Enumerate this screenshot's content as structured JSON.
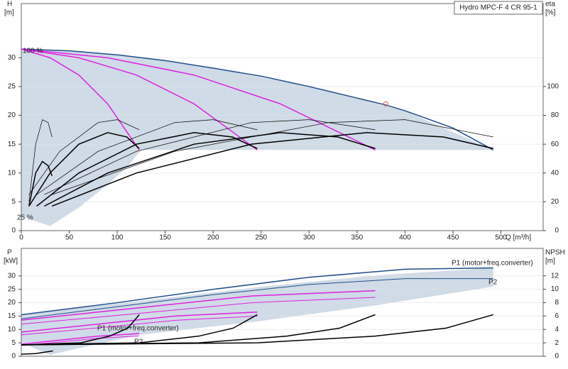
{
  "chart_data": [
    {
      "type": "line",
      "title": "Hydro MPC-F 4 CR 95-1",
      "xlabel": "Q [m³/h]",
      "ylabel": "H",
      "yunit": "[m]",
      "y2label": "eta",
      "y2unit": "[%]",
      "xlim": [
        0,
        544
      ],
      "xticks": [
        0,
        50,
        100,
        150,
        200,
        250,
        300,
        350,
        400,
        450,
        500
      ],
      "ylim": [
        0,
        39.4
      ],
      "yticks": [
        0,
        5,
        10,
        15,
        20,
        25,
        30
      ],
      "y2lim": [
        0,
        157.6
      ],
      "y2ticks": [
        0,
        20,
        40,
        60,
        80,
        100
      ],
      "grid": true,
      "annotations": [
        "100 %",
        "25 %"
      ],
      "areas": [
        {
          "color": "#cfdbe6",
          "x": [
            0,
            30,
            60,
            90,
            110,
            125,
            200,
            300,
            400,
            492
          ],
          "upper": [
            31.5,
            31.3,
            31,
            30.7,
            30.3,
            30,
            28.2,
            25,
            20.8,
            14
          ],
          "lower": [
            2.5,
            0.8,
            4,
            8,
            11,
            14,
            14,
            14,
            14,
            14
          ]
        }
      ],
      "series": [
        {
          "color": "#1f4e8c",
          "width": 1.5,
          "x": [
            0,
            50,
            100,
            150,
            200,
            250,
            300,
            350,
            380,
            400,
            450,
            492
          ],
          "values": [
            31.5,
            31.2,
            30.5,
            29.5,
            28.2,
            26.8,
            25,
            23,
            21.8,
            20.8,
            17.8,
            14
          ]
        },
        {
          "color": "#e020e0",
          "width": 1.5,
          "x": [
            0,
            30,
            60,
            90,
            123
          ],
          "values": [
            31.5,
            30,
            27,
            22,
            14
          ]
        },
        {
          "color": "#e020e0",
          "width": 1.5,
          "x": [
            0,
            60,
            120,
            180,
            246
          ],
          "values": [
            31.5,
            30,
            27,
            22,
            14
          ]
        },
        {
          "color": "#e020e0",
          "width": 1.5,
          "x": [
            0,
            90,
            180,
            270,
            369
          ],
          "values": [
            31.5,
            30,
            27,
            22,
            14
          ]
        },
        {
          "color": "#000000",
          "width": 1.5,
          "axis": "y2",
          "x": [
            8,
            30,
            60,
            90,
            110,
            123
          ],
          "values": [
            17,
            40,
            60,
            68,
            65,
            57
          ]
        },
        {
          "color": "#000000",
          "width": 1.5,
          "axis": "y2",
          "x": [
            16,
            60,
            120,
            180,
            220,
            246
          ],
          "values": [
            17,
            40,
            60,
            68,
            65,
            57
          ]
        },
        {
          "color": "#000000",
          "width": 1.5,
          "axis": "y2",
          "x": [
            24,
            90,
            180,
            270,
            330,
            369
          ],
          "values": [
            17,
            40,
            60,
            68,
            65,
            57
          ]
        },
        {
          "color": "#000000",
          "width": 1.5,
          "axis": "y2",
          "x": [
            32,
            120,
            240,
            360,
            440,
            492
          ],
          "values": [
            17,
            40,
            60,
            68,
            65,
            57
          ]
        },
        {
          "color": "#000000",
          "width": 1.5,
          "axis": "y2",
          "x": [
            8,
            15,
            22,
            28,
            32
          ],
          "values": [
            17,
            40,
            48,
            45,
            38
          ]
        },
        {
          "color": "#000000",
          "width": 0.7,
          "axis": "y2",
          "x": [
            8,
            40,
            80,
            100,
            123
          ],
          "values": [
            25,
            55,
            75,
            77,
            70
          ]
        },
        {
          "color": "#000000",
          "width": 0.7,
          "axis": "y2",
          "x": [
            16,
            80,
            160,
            200,
            246
          ],
          "values": [
            25,
            55,
            75,
            77,
            70
          ]
        },
        {
          "color": "#000000",
          "width": 0.7,
          "axis": "y2",
          "x": [
            24,
            120,
            240,
            300,
            369
          ],
          "values": [
            25,
            55,
            75,
            77,
            70
          ]
        },
        {
          "color": "#000000",
          "width": 0.7,
          "axis": "y2",
          "x": [
            32,
            160,
            320,
            400,
            492
          ],
          "values": [
            25,
            55,
            75,
            77,
            65
          ]
        },
        {
          "color": "#000000",
          "width": 0.7,
          "axis": "y2",
          "x": [
            8,
            15,
            22,
            28,
            32
          ],
          "values": [
            20,
            60,
            77,
            75,
            65
          ]
        },
        {
          "color": "#e05050",
          "marker": "circle",
          "x": [
            380
          ],
          "values": [
            22
          ]
        }
      ]
    },
    {
      "type": "line",
      "ylabel": "P",
      "yunit": "[kW]",
      "y2label": "NPSH",
      "y2unit": "[m]",
      "xlim": [
        0,
        544
      ],
      "ylim": [
        0,
        40.3
      ],
      "yticks": [
        0,
        5,
        10,
        15,
        20,
        25,
        30
      ],
      "y2lim": [
        0,
        16.1
      ],
      "y2ticks": [
        0,
        2,
        4,
        6,
        8,
        10,
        12
      ],
      "grid": true,
      "annotations": [
        "P1 (motor+freq.converter)",
        "P2",
        "P1 (motor+freq.converter)",
        "P2"
      ],
      "areas": [
        {
          "color": "#cfdbe6",
          "x": [
            0,
            30,
            60,
            123,
            246,
            369,
            492
          ],
          "upper": [
            15.5,
            16.8,
            18,
            20.6,
            25.8,
            30.2,
            33
          ],
          "lower": [
            5,
            0.5,
            3,
            8,
            13,
            19,
            26
          ]
        }
      ],
      "series": [
        {
          "color": "#1f4e8c",
          "width": 1.5,
          "x": [
            0,
            100,
            200,
            300,
            400,
            492
          ],
          "values": [
            15.5,
            20,
            25,
            29.5,
            32.5,
            33
          ]
        },
        {
          "color": "#1f4e8c",
          "width": 1,
          "x": [
            0,
            100,
            200,
            300,
            400,
            492
          ],
          "values": [
            14,
            18.5,
            23,
            26.8,
            29,
            29
          ]
        },
        {
          "color": "#e020e0",
          "width": 1.5,
          "x": [
            0,
            40,
            80,
            123
          ],
          "values": [
            4.5,
            6,
            7.5,
            8.5
          ]
        },
        {
          "color": "#e020e0",
          "width": 1,
          "x": [
            0,
            40,
            80,
            123
          ],
          "values": [
            4,
            5.3,
            6.7,
            7.6
          ]
        },
        {
          "color": "#e020e0",
          "width": 1.5,
          "x": [
            0,
            80,
            160,
            246
          ],
          "values": [
            9,
            12,
            15,
            16.5
          ]
        },
        {
          "color": "#e020e0",
          "width": 1,
          "x": [
            0,
            80,
            160,
            246
          ],
          "values": [
            8,
            10.6,
            13.4,
            15
          ]
        },
        {
          "color": "#e020e0",
          "width": 1.5,
          "x": [
            0,
            120,
            240,
            369
          ],
          "values": [
            13.5,
            18,
            22.5,
            24.5
          ]
        },
        {
          "color": "#e020e0",
          "width": 1,
          "x": [
            0,
            120,
            240,
            369
          ],
          "values": [
            12,
            15.9,
            20,
            22
          ]
        },
        {
          "color": "#000000",
          "width": 1.5,
          "axis": "y2",
          "x": [
            0,
            62,
            92,
            111,
            123
          ],
          "values": [
            1.7,
            2,
            3,
            4.2,
            6.2
          ]
        },
        {
          "color": "#000000",
          "width": 1.5,
          "axis": "y2",
          "x": [
            0,
            123,
            185,
            221,
            246
          ],
          "values": [
            1.7,
            2,
            3,
            4.2,
            6.2
          ]
        },
        {
          "color": "#000000",
          "width": 1.5,
          "axis": "y2",
          "x": [
            0,
            185,
            277,
            332,
            369
          ],
          "values": [
            1.7,
            2,
            3,
            4.2,
            6.2
          ]
        },
        {
          "color": "#000000",
          "width": 1.5,
          "axis": "y2",
          "x": [
            0,
            246,
            369,
            443,
            492
          ],
          "values": [
            1.7,
            2,
            3,
            4.2,
            6.2
          ]
        },
        {
          "color": "#000000",
          "width": 1.5,
          "axis": "y2",
          "x": [
            0,
            15,
            33
          ],
          "values": [
            0.3,
            0.4,
            0.8
          ]
        }
      ]
    }
  ]
}
